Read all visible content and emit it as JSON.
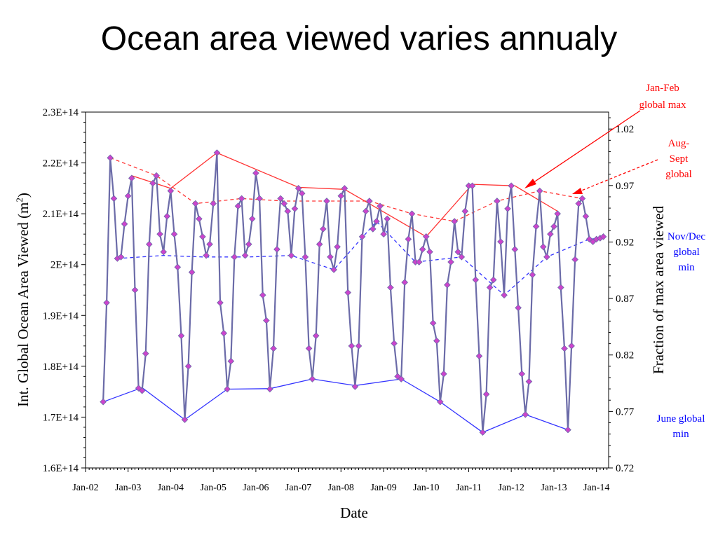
{
  "slide": {
    "title": "Ocean area viewed varies annualy"
  },
  "chart_data": {
    "type": "line",
    "xlabel": "Date",
    "ylabel": "Int. Global Ocean Area Viewed (m",
    "ylabel_sup": "2",
    "ylabel_close": ")",
    "y2label": "Fraction of max area viewed",
    "x_ticks": [
      "Jan-02",
      "Jan-03",
      "Jan-04",
      "Jan-05",
      "Jan-06",
      "Jan-07",
      "Jan-08",
      "Jan-09",
      "Jan-10",
      "Jan-11",
      "Jan-12",
      "Jan-13",
      "Jan-14"
    ],
    "y_ticks": [
      "1.6E+14",
      "1.7E+14",
      "1.8E+14",
      "1.9E+14",
      "2E+14",
      "2.1E+14",
      "2.2E+14",
      "2.3E+14"
    ],
    "y2_ticks": [
      "0.72",
      "0.77",
      "0.82",
      "0.87",
      "0.92",
      "0.97",
      "1.02"
    ],
    "ylim": [
      160000000000000.0,
      230000000000000.0
    ],
    "y2lim": [
      0.72,
      1.035
    ],
    "xlim": [
      "2002-01-01",
      "2014-04-15"
    ],
    "grid": false,
    "series": [
      {
        "color": "#6B6BA8",
        "marker_color": "#CC44CC",
        "style": "solid",
        "points": [
          [
            "2002-06-01",
            173000000000000.0
          ],
          [
            "2002-07-01",
            192500000000000.0
          ],
          [
            "2002-08-01",
            221000000000000.0
          ],
          [
            "2002-09-01",
            213000000000000.0
          ],
          [
            "2002-10-01",
            201200000000000.0
          ],
          [
            "2002-11-01",
            201500000000000.0
          ],
          [
            "2002-12-01",
            208000000000000.0
          ],
          [
            "2003-01-01",
            213500000000000.0
          ],
          [
            "2003-02-01",
            217000000000000.0
          ],
          [
            "2003-03-01",
            195000000000000.0
          ],
          [
            "2003-04-01",
            175700000000000.0
          ],
          [
            "2003-05-01",
            175200000000000.0
          ],
          [
            "2003-06-01",
            182500000000000.0
          ],
          [
            "2003-07-01",
            204000000000000.0
          ],
          [
            "2003-08-01",
            216000000000000.0
          ],
          [
            "2003-09-01",
            217500000000000.0
          ],
          [
            "2003-10-01",
            206000000000000.0
          ],
          [
            "2003-11-01",
            202500000000000.0
          ],
          [
            "2003-12-01",
            209500000000000.0
          ],
          [
            "2004-01-01",
            214500000000000.0
          ],
          [
            "2004-02-01",
            206000000000000.0
          ],
          [
            "2004-03-01",
            199500000000000.0
          ],
          [
            "2004-04-01",
            186000000000000.0
          ],
          [
            "2004-05-01",
            169500000000000.0
          ],
          [
            "2004-06-01",
            180000000000000.0
          ],
          [
            "2004-07-01",
            198500000000000.0
          ],
          [
            "2004-08-01",
            212000000000000.0
          ],
          [
            "2004-09-01",
            209000000000000.0
          ],
          [
            "2004-10-01",
            205500000000000.0
          ],
          [
            "2004-11-01",
            201800000000000.0
          ],
          [
            "2004-12-01",
            204000000000000.0
          ],
          [
            "2005-01-01",
            212000000000000.0
          ],
          [
            "2005-02-01",
            222000000000000.0
          ],
          [
            "2005-03-01",
            192500000000000.0
          ],
          [
            "2005-04-01",
            186500000000000.0
          ],
          [
            "2005-05-01",
            175500000000000.0
          ],
          [
            "2005-06-01",
            181000000000000.0
          ],
          [
            "2005-07-01",
            201500000000000.0
          ],
          [
            "2005-08-01",
            211500000000000.0
          ],
          [
            "2005-09-01",
            213000000000000.0
          ],
          [
            "2005-10-01",
            201800000000000.0
          ],
          [
            "2005-11-01",
            204000000000000.0
          ],
          [
            "2005-12-01",
            209000000000000.0
          ],
          [
            "2006-01-01",
            218000000000000.0
          ],
          [
            "2006-02-01",
            213000000000000.0
          ],
          [
            "2006-03-01",
            194000000000000.0
          ],
          [
            "2006-04-01",
            189000000000000.0
          ],
          [
            "2006-05-01",
            175500000000000.0
          ],
          [
            "2006-06-01",
            183500000000000.0
          ],
          [
            "2006-07-01",
            203000000000000.0
          ],
          [
            "2006-08-01",
            213000000000000.0
          ],
          [
            "2006-09-01",
            212000000000000.0
          ],
          [
            "2006-10-01",
            210500000000000.0
          ],
          [
            "2006-11-01",
            201800000000000.0
          ],
          [
            "2006-12-01",
            211000000000000.0
          ],
          [
            "2007-01-01",
            215000000000000.0
          ],
          [
            "2007-02-01",
            214000000000000.0
          ],
          [
            "2007-03-01",
            201500000000000.0
          ],
          [
            "2007-04-01",
            183500000000000.0
          ],
          [
            "2007-05-01",
            177500000000000.0
          ],
          [
            "2007-06-01",
            186000000000000.0
          ],
          [
            "2007-07-01",
            204000000000000.0
          ],
          [
            "2007-08-01",
            207000000000000.0
          ],
          [
            "2007-09-01",
            212500000000000.0
          ],
          [
            "2007-10-01",
            201500000000000.0
          ],
          [
            "2007-11-01",
            199000000000000.0
          ],
          [
            "2007-12-01",
            203500000000000.0
          ],
          [
            "2008-01-01",
            213500000000000.0
          ],
          [
            "2008-02-01",
            215000000000000.0
          ],
          [
            "2008-03-01",
            194500000000000.0
          ],
          [
            "2008-04-01",
            184000000000000.0
          ],
          [
            "2008-05-01",
            176000000000000.0
          ],
          [
            "2008-06-01",
            184000000000000.0
          ],
          [
            "2008-07-01",
            205500000000000.0
          ],
          [
            "2008-08-01",
            210500000000000.0
          ],
          [
            "2008-09-01",
            212500000000000.0
          ],
          [
            "2008-10-01",
            207000000000000.0
          ],
          [
            "2008-11-01",
            208500000000000.0
          ],
          [
            "2008-12-01",
            211500000000000.0
          ],
          [
            "2009-01-01",
            206000000000000.0
          ],
          [
            "2009-02-01",
            209000000000000.0
          ],
          [
            "2009-03-01",
            195500000000000.0
          ],
          [
            "2009-04-01",
            184500000000000.0
          ],
          [
            "2009-05-01",
            178000000000000.0
          ],
          [
            "2009-06-01",
            177500000000000.0
          ],
          [
            "2009-07-01",
            196500000000000.0
          ],
          [
            "2009-08-01",
            205000000000000.0
          ],
          [
            "2009-09-01",
            210000000000000.0
          ],
          [
            "2009-10-01",
            200500000000000.0
          ],
          [
            "2009-11-01",
            200500000000000.0
          ],
          [
            "2009-12-01",
            203000000000000.0
          ],
          [
            "2010-01-01",
            205500000000000.0
          ],
          [
            "2010-02-01",
            202500000000000.0
          ],
          [
            "2010-03-01",
            188500000000000.0
          ],
          [
            "2010-04-01",
            185000000000000.0
          ],
          [
            "2010-05-01",
            173000000000000.0
          ],
          [
            "2010-06-01",
            178500000000000.0
          ],
          [
            "2010-07-01",
            196000000000000.0
          ],
          [
            "2010-08-01",
            200500000000000.0
          ],
          [
            "2010-09-01",
            208500000000000.0
          ],
          [
            "2010-10-01",
            202500000000000.0
          ],
          [
            "2010-11-01",
            201500000000000.0
          ],
          [
            "2010-12-01",
            210500000000000.0
          ],
          [
            "2011-01-01",
            215500000000000.0
          ],
          [
            "2011-02-01",
            215500000000000.0
          ],
          [
            "2011-03-01",
            197000000000000.0
          ],
          [
            "2011-04-01",
            182000000000000.0
          ],
          [
            "2011-05-01",
            167000000000000.0
          ],
          [
            "2011-06-01",
            174500000000000.0
          ],
          [
            "2011-07-01",
            195500000000000.0
          ],
          [
            "2011-08-01",
            197000000000000.0
          ],
          [
            "2011-09-01",
            212500000000000.0
          ],
          [
            "2011-10-01",
            204500000000000.0
          ],
          [
            "2011-11-01",
            194000000000000.0
          ],
          [
            "2011-12-01",
            211000000000000.0
          ],
          [
            "2012-01-01",
            215500000000000.0
          ],
          [
            "2012-02-01",
            203000000000000.0
          ],
          [
            "2012-03-01",
            191500000000000.0
          ],
          [
            "2012-04-01",
            178500000000000.0
          ],
          [
            "2012-05-01",
            170500000000000.0
          ],
          [
            "2012-06-01",
            177000000000000.0
          ],
          [
            "2012-07-01",
            198000000000000.0
          ],
          [
            "2012-08-01",
            207500000000000.0
          ],
          [
            "2012-09-01",
            214500000000000.0
          ],
          [
            "2012-10-01",
            203500000000000.0
          ],
          [
            "2012-11-01",
            201500000000000.0
          ],
          [
            "2012-12-01",
            206000000000000.0
          ],
          [
            "2013-01-01",
            207500000000000.0
          ],
          [
            "2013-02-01",
            210000000000000.0
          ],
          [
            "2013-03-01",
            195500000000000.0
          ],
          [
            "2013-04-01",
            183500000000000.0
          ],
          [
            "2013-05-01",
            167500000000000.0
          ],
          [
            "2013-06-01",
            184000000000000.0
          ],
          [
            "2013-07-01",
            201000000000000.0
          ],
          [
            "2013-08-01",
            212000000000000.0
          ],
          [
            "2013-09-01",
            213000000000000.0
          ],
          [
            "2013-10-01",
            209500000000000.0
          ],
          [
            "2013-11-01",
            205000000000000.0
          ],
          [
            "2013-12-01",
            204500000000000.0
          ],
          [
            "2014-01-01",
            205000000000000.0
          ],
          [
            "2014-02-01",
            205200000000000.0
          ],
          [
            "2014-03-01",
            205500000000000.0
          ]
        ]
      },
      {
        "color": "#FF3333",
        "style": "solid",
        "points": [
          [
            "2003-02-01",
            217500000000000.0
          ],
          [
            "2004-01-01",
            215000000000000.0
          ],
          [
            "2005-02-01",
            222000000000000.0
          ],
          [
            "2007-01-01",
            215200000000000.0
          ],
          [
            "2008-02-01",
            214800000000000.0
          ],
          [
            "2010-01-01",
            205500000000000.0
          ],
          [
            "2011-02-01",
            215800000000000.0
          ],
          [
            "2012-02-01",
            215500000000000.0
          ],
          [
            "2013-02-01",
            210500000000000.0
          ]
        ]
      },
      {
        "color": "#FF3333",
        "style": "dashed",
        "points": [
          [
            "2002-08-01",
            221000000000000.0
          ],
          [
            "2003-09-01",
            217500000000000.0
          ],
          [
            "2004-08-01",
            212000000000000.0
          ],
          [
            "2005-09-01",
            213000000000000.0
          ],
          [
            "2006-09-01",
            212500000000000.0
          ],
          [
            "2007-09-01",
            212500000000000.0
          ],
          [
            "2008-09-01",
            212500000000000.0
          ],
          [
            "2009-09-01",
            210000000000000.0
          ],
          [
            "2010-09-01",
            208500000000000.0
          ],
          [
            "2011-09-01",
            212500000000000.0
          ],
          [
            "2012-09-01",
            214500000000000.0
          ],
          [
            "2013-09-01",
            213000000000000.0
          ]
        ]
      },
      {
        "color": "#3333FF",
        "style": "dashed",
        "points": [
          [
            "2002-10-01",
            201200000000000.0
          ],
          [
            "2003-11-01",
            201800000000000.0
          ],
          [
            "2004-10-01",
            201500000000000.0
          ],
          [
            "2005-11-01",
            201500000000000.0
          ],
          [
            "2006-11-01",
            201800000000000.0
          ],
          [
            "2007-11-01",
            199000000000000.0
          ],
          [
            "2008-11-01",
            208500000000000.0
          ],
          [
            "2009-10-01",
            200500000000000.0
          ],
          [
            "2010-11-01",
            201500000000000.0
          ],
          [
            "2011-11-01",
            194000000000000.0
          ],
          [
            "2012-11-01",
            201500000000000.0
          ],
          [
            "2013-11-01",
            205000000000000.0
          ],
          [
            "2014-02-01",
            205200000000000.0
          ]
        ]
      },
      {
        "color": "#3333FF",
        "style": "solid",
        "points": [
          [
            "2002-06-01",
            173000000000000.0
          ],
          [
            "2003-05-01",
            175800000000000.0
          ],
          [
            "2004-05-01",
            169500000000000.0
          ],
          [
            "2005-05-01",
            175500000000000.0
          ],
          [
            "2006-05-01",
            175600000000000.0
          ],
          [
            "2007-05-01",
            177500000000000.0
          ],
          [
            "2008-05-01",
            176200000000000.0
          ],
          [
            "2009-06-01",
            177500000000000.0
          ],
          [
            "2010-05-01",
            173000000000000.0
          ],
          [
            "2011-05-01",
            167000000000000.0
          ],
          [
            "2012-05-01",
            170500000000000.0
          ],
          [
            "2013-05-01",
            167500000000000.0
          ]
        ]
      }
    ],
    "annotations": [
      {
        "lines": [
          "Jan-Feb",
          "global max"
        ],
        "color": "#FF0000"
      },
      {
        "lines": [
          "Aug-",
          "Sept",
          "global"
        ],
        "color": "#FF0000"
      },
      {
        "lines": [
          "Nov/Dec",
          "global",
          "min"
        ],
        "color": "#0000FF"
      },
      {
        "lines": [
          "June global",
          "min"
        ],
        "color": "#0000FF"
      }
    ]
  }
}
